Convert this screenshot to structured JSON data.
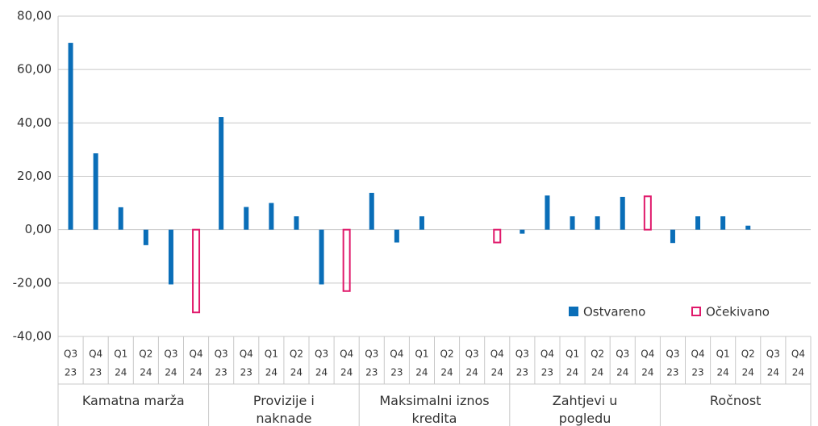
{
  "chart_data": {
    "type": "bar",
    "groups": [
      "Kamatna marža",
      "Provizije i naknade",
      "Maksimalni iznos kredita",
      "Zahtjevi u pogledu kolaterala",
      "Ročnost"
    ],
    "categories": [
      [
        "Q3",
        "23"
      ],
      [
        "Q4",
        "23"
      ],
      [
        "Q1",
        "24"
      ],
      [
        "Q2",
        "24"
      ],
      [
        "Q3",
        "24"
      ],
      [
        "Q4",
        "24"
      ],
      [
        "Q3",
        "23"
      ],
      [
        "Q4",
        "23"
      ],
      [
        "Q1",
        "24"
      ],
      [
        "Q2",
        "24"
      ],
      [
        "Q3",
        "24"
      ],
      [
        "Q4",
        "24"
      ],
      [
        "Q3",
        "23"
      ],
      [
        "Q4",
        "23"
      ],
      [
        "Q1",
        "24"
      ],
      [
        "Q2",
        "24"
      ],
      [
        "Q3",
        "24"
      ],
      [
        "Q4",
        "24"
      ],
      [
        "Q3",
        "23"
      ],
      [
        "Q4",
        "23"
      ],
      [
        "Q1",
        "24"
      ],
      [
        "Q2",
        "24"
      ],
      [
        "Q3",
        "24"
      ],
      [
        "Q4",
        "24"
      ],
      [
        "Q3",
        "23"
      ],
      [
        "Q4",
        "23"
      ],
      [
        "Q1",
        "24"
      ],
      [
        "Q2",
        "24"
      ],
      [
        "Q3",
        "24"
      ],
      [
        "Q4",
        "24"
      ]
    ],
    "series": [
      {
        "name": "Ostvareno",
        "color": "#0a6eb8",
        "style": "filled",
        "values": [
          70,
          28.6,
          8.4,
          -5.8,
          -20.5,
          null,
          42.2,
          8.5,
          10,
          5,
          -20.5,
          null,
          13.8,
          -4.8,
          5,
          0,
          0,
          null,
          -1.5,
          12.8,
          5,
          5,
          12.3,
          null,
          -5,
          5,
          5,
          1.5,
          0,
          null
        ]
      },
      {
        "name": "Očekivano",
        "color": "#e0196b",
        "style": "outline",
        "values": [
          null,
          null,
          null,
          null,
          null,
          -31,
          null,
          null,
          null,
          null,
          null,
          -23,
          null,
          null,
          null,
          null,
          null,
          -4.8,
          null,
          null,
          null,
          null,
          null,
          12.5,
          null,
          null,
          null,
          null,
          null,
          0
        ]
      }
    ],
    "ylim": [
      -40,
      80
    ],
    "yticks": [
      {
        "value": -40,
        "label": "-40,00"
      },
      {
        "value": -20,
        "label": "-20,00"
      },
      {
        "value": 0,
        "label": "0,00"
      },
      {
        "value": 20,
        "label": "20,00"
      },
      {
        "value": 40,
        "label": "40,00"
      },
      {
        "value": 60,
        "label": "60,00"
      },
      {
        "value": 80,
        "label": "80,00"
      }
    ],
    "grid": true,
    "legend": "bottom-right"
  }
}
